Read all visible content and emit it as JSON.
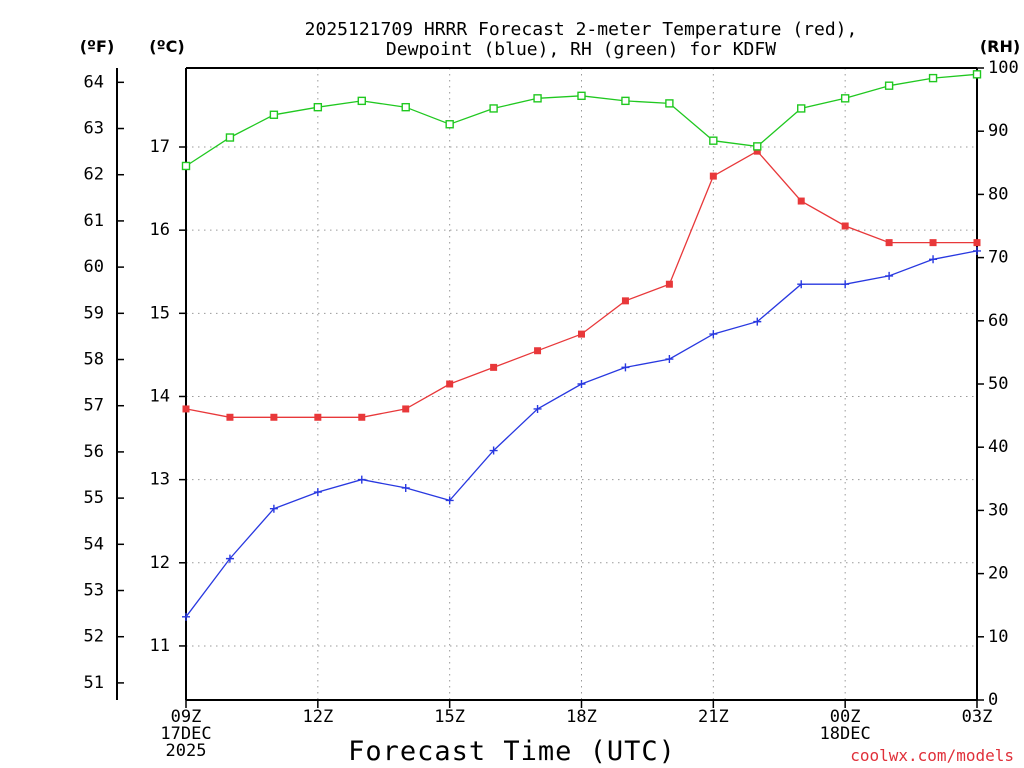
{
  "chart_data": {
    "type": "line",
    "title_lines": [
      "2025121709 HRRR Forecast 2-meter Temperature (red),",
      "Dewpoint (blue), RH (green) for KDFW"
    ],
    "axis_units": {
      "fahrenheit": "(ºF)",
      "celsius": "(ºC)",
      "rh": "(RH)"
    },
    "xlabel": "Forecast Time (UTC)",
    "credit": "coolwx.com/models",
    "x_hours": [
      0,
      1,
      2,
      3,
      4,
      5,
      6,
      7,
      8,
      9,
      10,
      11,
      12,
      13,
      14,
      15,
      16,
      17,
      18
    ],
    "x_ticks": [
      {
        "hour": 0,
        "lines": [
          "09Z",
          "17DEC",
          "2025"
        ]
      },
      {
        "hour": 3,
        "lines": [
          "12Z"
        ]
      },
      {
        "hour": 6,
        "lines": [
          "15Z"
        ]
      },
      {
        "hour": 9,
        "lines": [
          "18Z"
        ]
      },
      {
        "hour": 12,
        "lines": [
          "21Z"
        ]
      },
      {
        "hour": 15,
        "lines": [
          "00Z",
          "18DEC"
        ]
      },
      {
        "hour": 18,
        "lines": [
          "03Z"
        ]
      }
    ],
    "celsius_axis": {
      "range": [
        10.35,
        17.95
      ],
      "ticks": [
        11,
        12,
        13,
        14,
        15,
        16,
        17
      ]
    },
    "fahrenheit_axis": {
      "ticks": [
        51,
        52,
        53,
        54,
        55,
        56,
        57,
        58,
        59,
        60,
        61,
        62,
        63,
        64
      ]
    },
    "rh_axis": {
      "range": [
        0,
        100
      ],
      "ticks": [
        0,
        10,
        20,
        30,
        40,
        50,
        60,
        70,
        80,
        90,
        100
      ]
    },
    "series": [
      {
        "name": "2-meter Temperature",
        "axis": "celsius",
        "color": "#e8383a",
        "marker": "filled-square",
        "values": [
          13.85,
          13.75,
          13.75,
          13.75,
          13.75,
          13.85,
          14.15,
          14.35,
          14.55,
          14.75,
          15.15,
          15.35,
          16.65,
          16.95,
          16.35,
          16.05,
          15.85,
          15.85,
          15.85
        ]
      },
      {
        "name": "Dewpoint",
        "axis": "celsius",
        "color": "#2838e0",
        "marker": "plus",
        "values": [
          11.35,
          12.05,
          12.65,
          12.85,
          13.0,
          12.9,
          12.75,
          13.35,
          13.85,
          14.15,
          14.35,
          14.45,
          14.75,
          14.9,
          15.35,
          15.35,
          15.45,
          15.65,
          15.75
        ]
      },
      {
        "name": "RH",
        "axis": "rh",
        "color": "#20c820",
        "marker": "open-square",
        "values": [
          84.5,
          89.0,
          92.6,
          93.8,
          94.8,
          93.8,
          91.1,
          93.6,
          95.2,
          95.6,
          94.8,
          94.4,
          88.5,
          87.6,
          93.6,
          95.2,
          97.2,
          98.4,
          99.0
        ]
      }
    ],
    "grid": true
  }
}
